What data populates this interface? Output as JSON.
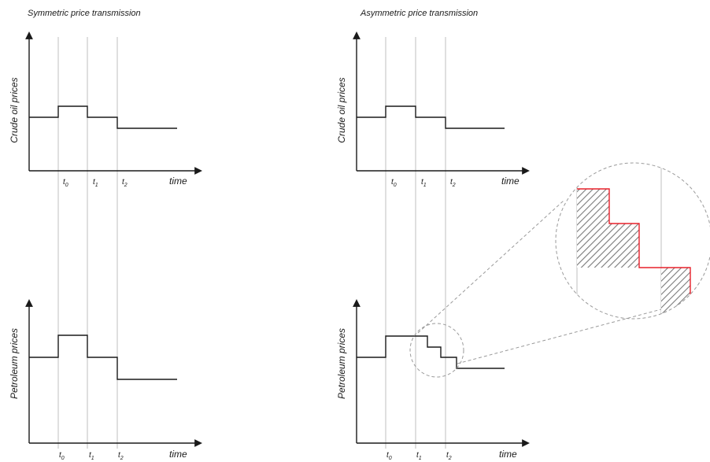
{
  "panels": {
    "left_title": "Symmetric price transmission",
    "right_title": "Asymmetric price transmission"
  },
  "axes": {
    "crude_label": "Crude oil prices",
    "petroleum_label": "Petroleum  prices",
    "time_label": "time",
    "t0": "t",
    "t0_sub": "0",
    "t1": "t",
    "t1_sub": "1",
    "t2": "t",
    "t2_sub": "2"
  },
  "colors": {
    "line": "#1a1a1a",
    "guide": "#bfbfbf",
    "zoom": "#9a9a9a",
    "highlight": "#e8202a",
    "hatch": "#7a7a7a"
  }
}
